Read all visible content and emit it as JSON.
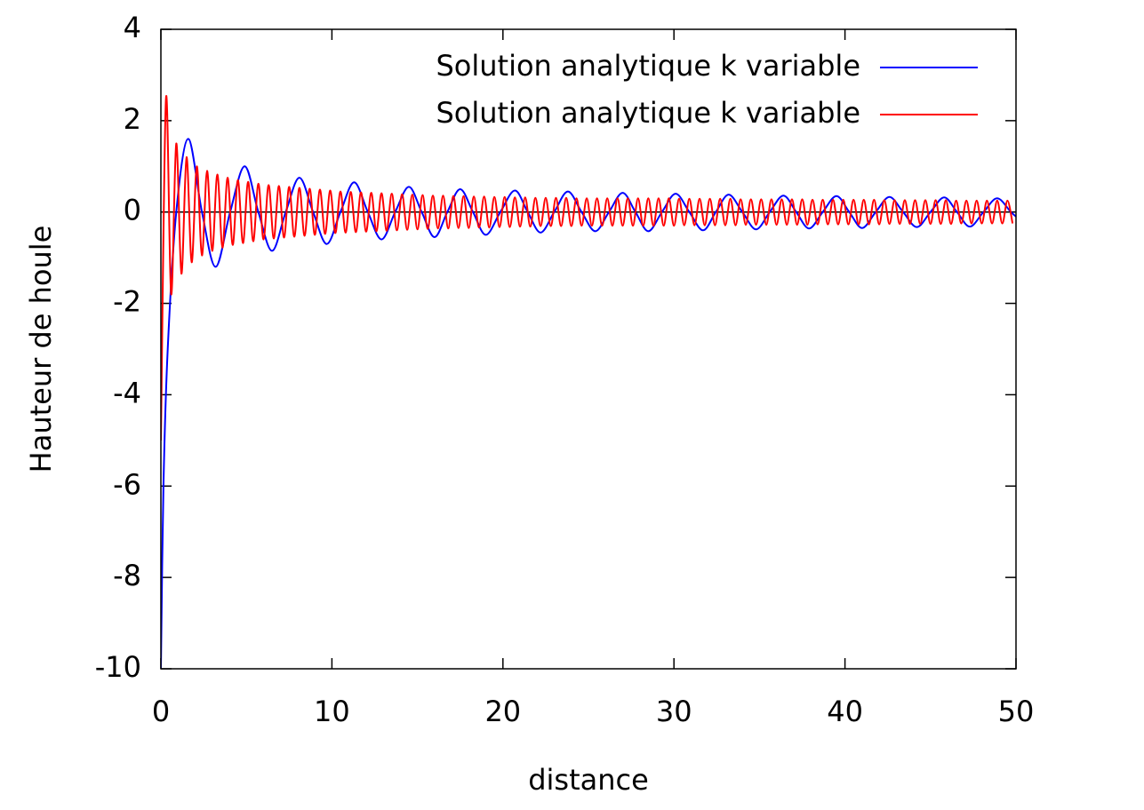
{
  "chart_data": {
    "type": "line",
    "xlabel": "distance",
    "ylabel": "Hauteur de houle",
    "xlim": [
      0,
      50
    ],
    "ylim": [
      -10,
      4
    ],
    "xticks": [
      0,
      10,
      20,
      30,
      40,
      50
    ],
    "yticks": [
      -10,
      -8,
      -6,
      -4,
      -2,
      0,
      2,
      4
    ],
    "zeroaxis": true,
    "legend": "top-right",
    "series": [
      {
        "name": "Solution analytique k variable",
        "color": "#0000ff",
        "x": [
          0,
          0.15,
          0.4,
          0.9,
          1.6,
          2.4,
          3.2,
          4.05,
          4.9,
          5.7,
          6.5,
          7.3,
          8.1,
          8.9,
          9.7,
          10.5,
          11.3,
          12.1,
          12.9,
          13.7,
          14.5,
          15.25,
          16.0,
          16.75,
          17.5,
          18.25,
          19.0,
          19.85,
          20.7,
          21.45,
          22.2,
          23.0,
          23.8,
          24.6,
          25.4,
          26.2,
          27.0,
          27.75,
          28.5,
          29.3,
          30.1,
          30.9,
          31.7,
          32.45,
          33.2,
          34.0,
          34.8,
          35.6,
          36.4,
          37.15,
          37.9,
          38.7,
          39.5,
          40.25,
          41.0,
          41.8,
          42.6,
          43.4,
          44.2,
          45.0,
          45.8,
          46.55,
          47.3,
          48.1,
          48.9,
          49.7,
          50
        ],
        "values": [
          -10,
          -6,
          -3,
          0,
          1.6,
          0,
          -1.2,
          0,
          1.0,
          0,
          -0.85,
          0,
          0.75,
          0,
          -0.7,
          0,
          0.65,
          0,
          -0.6,
          0,
          0.55,
          0,
          -0.55,
          0,
          0.5,
          0,
          -0.5,
          0,
          0.47,
          0,
          -0.45,
          0,
          0.45,
          0,
          -0.42,
          0,
          0.42,
          0,
          -0.42,
          0,
          0.4,
          0,
          -0.4,
          0,
          0.38,
          0,
          -0.38,
          0,
          0.36,
          0,
          -0.36,
          0,
          0.35,
          0,
          -0.35,
          0,
          0.33,
          0,
          -0.33,
          0,
          0.32,
          0,
          -0.32,
          0,
          0.3,
          0,
          -0.1
        ]
      },
      {
        "name": "Solution analytique k variable",
        "color": "#ff0000",
        "x": [
          0,
          0.3,
          0.6,
          0.9,
          1.2,
          1.5,
          1.8,
          2.1,
          2.4,
          2.7,
          3,
          3.3,
          3.6,
          3.9,
          4.2,
          4.5,
          4.8,
          5.1,
          5.4,
          5.7,
          6,
          6.3,
          6.6,
          6.9,
          7.2,
          7.5,
          7.8,
          8.1,
          8.4,
          8.7,
          9,
          9.3,
          9.6,
          9.9,
          10.2,
          10.5,
          10.8,
          11.1,
          11.4,
          11.7,
          12,
          12.3,
          12.6,
          12.9,
          13.2,
          13.5,
          13.8,
          14.1,
          14.4,
          14.7,
          15,
          15.3,
          15.6,
          15.9,
          16.2,
          16.5,
          16.8,
          17.1,
          17.4,
          17.7,
          18,
          18.3,
          18.6,
          18.9,
          19.2,
          19.5,
          19.8,
          20.1,
          20.4,
          20.7,
          21,
          21.3,
          21.6,
          21.9,
          22.2,
          22.5,
          22.8,
          23.1,
          23.4,
          23.7,
          24,
          24.3,
          24.6,
          24.9,
          25.2,
          25.5,
          25.8,
          26.1,
          26.4,
          26.7,
          27,
          27.3,
          27.6,
          27.9,
          28.2,
          28.5,
          28.8,
          29.1,
          29.4,
          29.7,
          30,
          30.3,
          30.6,
          30.9,
          31.2,
          31.5,
          31.8,
          32.1,
          32.4,
          32.7,
          33,
          33.3,
          33.6,
          33.9,
          34.2,
          34.5,
          34.8,
          35.1,
          35.4,
          35.7,
          36,
          36.3,
          36.6,
          36.9,
          37.2,
          37.5,
          37.8,
          38.1,
          38.4,
          38.7,
          39,
          39.3,
          39.6,
          39.9,
          40.2,
          40.5,
          40.8,
          41.1,
          41.4,
          41.7,
          42,
          42.3,
          42.6,
          42.9,
          43.2,
          43.5,
          43.8,
          44.1,
          44.4,
          44.7,
          45,
          45.3,
          45.6,
          45.9,
          46.2,
          46.5,
          46.8,
          47.1,
          47.4,
          47.7,
          48,
          48.3,
          48.6,
          48.9,
          49.2,
          49.5,
          49.8
        ],
        "values": [
          -5,
          2.5,
          -1.8,
          1.5,
          -1.35,
          1.2,
          -1.1,
          1.0,
          -0.95,
          0.9,
          -0.85,
          0.82,
          -0.78,
          0.75,
          -0.72,
          0.7,
          -0.68,
          0.66,
          -0.64,
          0.62,
          -0.6,
          0.59,
          -0.58,
          0.57,
          -0.56,
          0.55,
          -0.54,
          0.53,
          -0.52,
          0.51,
          -0.5,
          0.49,
          -0.48,
          0.47,
          -0.46,
          0.45,
          -0.45,
          0.44,
          -0.44,
          0.43,
          -0.43,
          0.42,
          -0.42,
          0.41,
          -0.41,
          0.4,
          -0.4,
          0.39,
          -0.39,
          0.38,
          -0.38,
          0.37,
          -0.37,
          0.36,
          -0.36,
          0.36,
          -0.36,
          0.35,
          -0.35,
          0.35,
          -0.35,
          0.34,
          -0.34,
          0.34,
          -0.34,
          0.33,
          -0.33,
          0.33,
          -0.33,
          0.32,
          -0.32,
          0.32,
          -0.32,
          0.31,
          -0.31,
          0.31,
          -0.31,
          0.31,
          -0.31,
          0.31,
          -0.31,
          0.3,
          -0.3,
          0.3,
          -0.3,
          0.3,
          -0.3,
          0.3,
          -0.3,
          0.3,
          -0.3,
          0.3,
          -0.3,
          0.3,
          -0.3,
          0.3,
          -0.3,
          0.3,
          -0.3,
          0.3,
          -0.3,
          0.29,
          -0.29,
          0.29,
          -0.29,
          0.29,
          -0.29,
          0.29,
          -0.29,
          0.29,
          -0.29,
          0.29,
          -0.29,
          0.28,
          -0.28,
          0.28,
          -0.28,
          0.28,
          -0.28,
          0.28,
          -0.28,
          0.28,
          -0.28,
          0.28,
          -0.28,
          0.28,
          -0.28,
          0.27,
          -0.27,
          0.27,
          -0.27,
          0.27,
          -0.27,
          0.27,
          -0.27,
          0.27,
          -0.27,
          0.27,
          -0.27,
          0.27,
          -0.27,
          0.26,
          -0.26,
          0.26,
          -0.26,
          0.26,
          -0.26,
          0.26,
          -0.26,
          0.26,
          -0.26,
          0.26,
          -0.26,
          0.26,
          -0.26,
          0.25,
          -0.25,
          0.25,
          -0.25,
          0.25,
          -0.25,
          0.25,
          -0.25,
          0.25,
          -0.25,
          0.25,
          -0.25
        ]
      }
    ]
  }
}
